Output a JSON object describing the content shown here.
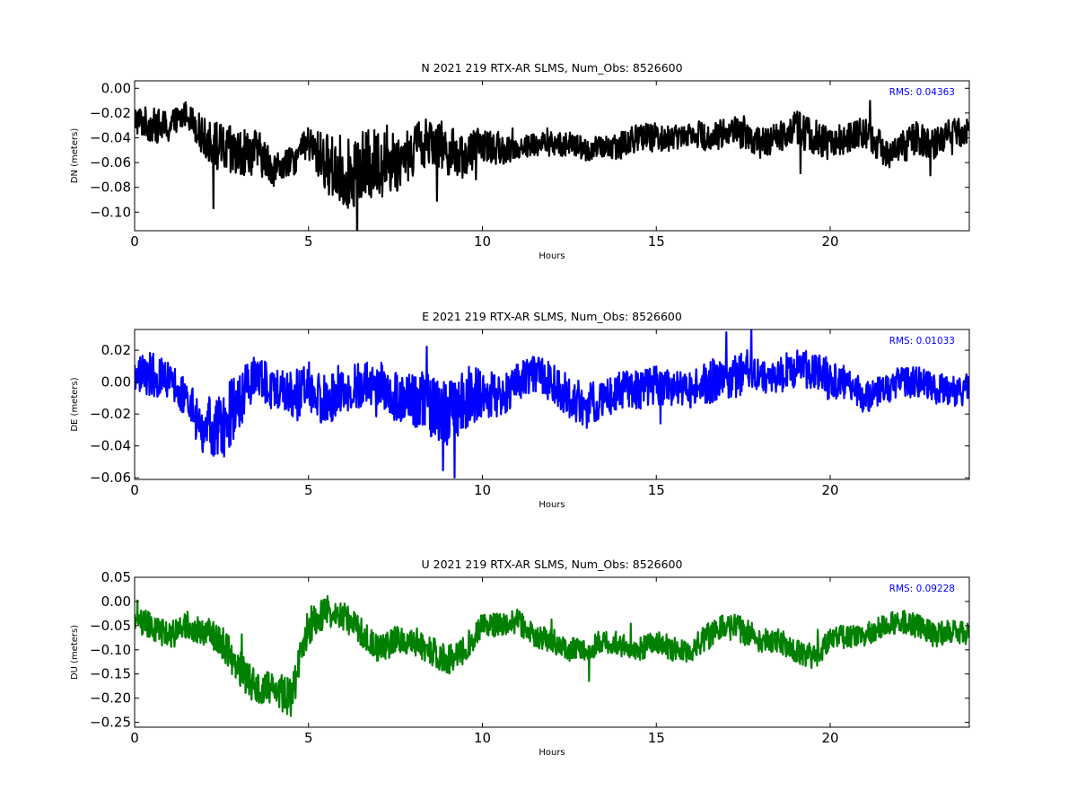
{
  "chart_data": [
    {
      "type": "line",
      "title": "N 2021 219 RTX-AR  SLMS, Num_Obs: 8526600",
      "xlabel": "Hours",
      "ylabel": "DN (meters)",
      "xlim": [
        0,
        24
      ],
      "ylim": [
        -0.115,
        0.006
      ],
      "xticks": [
        0,
        5,
        10,
        15,
        20
      ],
      "yticks": [
        0.0,
        -0.02,
        -0.04,
        -0.06,
        -0.08,
        -0.1
      ],
      "ytick_labels": [
        "0.00",
        "−0.02",
        "−0.04",
        "−0.06",
        "−0.08",
        "−0.10"
      ],
      "annotation": "RMS:  0.04363",
      "annotation_color": "#0000ff",
      "color": "#000000",
      "series": [
        {
          "x": [
            0,
            0.5,
            1.0,
            1.5,
            2.0,
            2.5,
            3.0,
            3.5,
            4.0,
            4.5,
            5.0,
            5.5,
            6.0,
            6.5,
            7.0,
            7.5,
            8.0,
            8.5,
            9.0,
            9.5,
            10.0,
            10.5,
            11.0,
            11.5,
            12.0,
            12.5,
            13.0,
            13.5,
            14.0,
            14.5,
            15.0,
            15.5,
            16.0,
            16.5,
            17.0,
            17.5,
            18.0,
            18.5,
            19.0,
            19.5,
            20.0,
            20.5,
            21.0,
            21.5,
            22.0,
            22.5,
            23.0,
            23.5,
            24.0
          ],
          "y": [
            -0.025,
            -0.03,
            -0.032,
            -0.02,
            -0.04,
            -0.05,
            -0.055,
            -0.05,
            -0.065,
            -0.06,
            -0.045,
            -0.06,
            -0.07,
            -0.065,
            -0.06,
            -0.06,
            -0.05,
            -0.04,
            -0.05,
            -0.055,
            -0.045,
            -0.05,
            -0.048,
            -0.045,
            -0.045,
            -0.045,
            -0.05,
            -0.048,
            -0.045,
            -0.04,
            -0.04,
            -0.04,
            -0.035,
            -0.04,
            -0.035,
            -0.035,
            -0.045,
            -0.04,
            -0.03,
            -0.04,
            -0.045,
            -0.04,
            -0.035,
            -0.05,
            -0.05,
            -0.04,
            -0.045,
            -0.035,
            -0.035
          ],
          "band": [
            0.012,
            0.014,
            0.014,
            0.01,
            0.016,
            0.022,
            0.022,
            0.018,
            0.014,
            0.012,
            0.014,
            0.024,
            0.028,
            0.03,
            0.028,
            0.026,
            0.022,
            0.02,
            0.02,
            0.018,
            0.014,
            0.012,
            0.01,
            0.01,
            0.01,
            0.01,
            0.01,
            0.01,
            0.012,
            0.012,
            0.012,
            0.01,
            0.01,
            0.012,
            0.012,
            0.014,
            0.012,
            0.012,
            0.014,
            0.016,
            0.014,
            0.012,
            0.012,
            0.014,
            0.014,
            0.014,
            0.012,
            0.012,
            0.012
          ]
        }
      ]
    },
    {
      "type": "line",
      "title": "E 2021 219 RTX-AR  SLMS, Num_Obs: 8526600",
      "xlabel": "Hours",
      "ylabel": "DE (meters)",
      "xlim": [
        0,
        24
      ],
      "ylim": [
        -0.061,
        0.033
      ],
      "xticks": [
        0,
        5,
        10,
        15,
        20
      ],
      "yticks": [
        0.02,
        0.0,
        -0.02,
        -0.04,
        -0.06
      ],
      "ytick_labels": [
        "0.02",
        "0.00",
        "−0.02",
        "−0.04",
        "−0.06"
      ],
      "annotation": "RMS:  0.01033",
      "annotation_color": "#0000ff",
      "color": "#0000ff",
      "series": [
        {
          "x": [
            0,
            0.5,
            1.0,
            1.5,
            2.0,
            2.5,
            3.0,
            3.5,
            4.0,
            4.5,
            5.0,
            5.5,
            6.0,
            6.5,
            7.0,
            7.5,
            8.0,
            8.5,
            9.0,
            9.5,
            10.0,
            10.5,
            11.0,
            11.5,
            12.0,
            12.5,
            13.0,
            13.5,
            14.0,
            14.5,
            15.0,
            15.5,
            16.0,
            16.5,
            17.0,
            17.5,
            18.0,
            18.5,
            19.0,
            19.5,
            20.0,
            20.5,
            21.0,
            21.5,
            22.0,
            22.5,
            23.0,
            23.5,
            24.0
          ],
          "y": [
            0.005,
            0.005,
            0.002,
            -0.01,
            -0.03,
            -0.03,
            -0.01,
            0.005,
            -0.005,
            -0.01,
            -0.005,
            -0.012,
            -0.005,
            -0.002,
            0.0,
            -0.01,
            -0.01,
            -0.015,
            -0.02,
            -0.01,
            -0.005,
            -0.01,
            0.0,
            0.005,
            0.0,
            -0.01,
            -0.015,
            -0.01,
            -0.005,
            -0.005,
            -0.002,
            -0.005,
            -0.005,
            0.0,
            0.002,
            0.005,
            0.005,
            0.005,
            0.008,
            0.008,
            0.0,
            0.0,
            -0.01,
            -0.005,
            0.0,
            0.0,
            -0.005,
            -0.005,
            -0.005
          ],
          "band": [
            0.012,
            0.014,
            0.012,
            0.012,
            0.02,
            0.022,
            0.02,
            0.012,
            0.014,
            0.016,
            0.018,
            0.016,
            0.014,
            0.014,
            0.014,
            0.016,
            0.018,
            0.02,
            0.02,
            0.02,
            0.016,
            0.014,
            0.012,
            0.012,
            0.012,
            0.014,
            0.014,
            0.012,
            0.012,
            0.012,
            0.012,
            0.012,
            0.012,
            0.014,
            0.014,
            0.014,
            0.012,
            0.012,
            0.012,
            0.012,
            0.012,
            0.01,
            0.01,
            0.01,
            0.01,
            0.01,
            0.01,
            0.01,
            0.01
          ]
        }
      ]
    },
    {
      "type": "line",
      "title": "U 2021 219 RTX-AR  SLMS, Num_Obs: 8526600",
      "xlabel": "Hours",
      "ylabel": "DU (meters)",
      "xlim": [
        0,
        24
      ],
      "ylim": [
        -0.26,
        0.05
      ],
      "xticks": [
        0,
        5,
        10,
        15,
        20
      ],
      "yticks": [
        0.05,
        0.0,
        -0.05,
        -0.1,
        -0.15,
        -0.2,
        -0.25
      ],
      "ytick_labels": [
        "0.05",
        "0.00",
        "−0.05",
        "−0.10",
        "−0.15",
        "−0.20",
        "−0.25"
      ],
      "annotation": "RMS:  0.09228",
      "annotation_color": "#0000ff",
      "color": "#008000",
      "series": [
        {
          "x": [
            0,
            0.5,
            1.0,
            1.5,
            2.0,
            2.5,
            3.0,
            3.5,
            4.0,
            4.5,
            5.0,
            5.5,
            6.0,
            6.5,
            7.0,
            7.5,
            8.0,
            8.5,
            9.0,
            9.5,
            10.0,
            10.5,
            11.0,
            11.5,
            12.0,
            12.5,
            13.0,
            13.5,
            14.0,
            14.5,
            15.0,
            15.5,
            16.0,
            16.5,
            17.0,
            17.5,
            18.0,
            18.5,
            19.0,
            19.5,
            20.0,
            20.5,
            21.0,
            21.5,
            22.0,
            22.5,
            23.0,
            23.5,
            24.0
          ],
          "y": [
            -0.04,
            -0.05,
            -0.07,
            -0.05,
            -0.06,
            -0.08,
            -0.14,
            -0.18,
            -0.18,
            -0.2,
            -0.05,
            -0.02,
            -0.03,
            -0.06,
            -0.1,
            -0.08,
            -0.08,
            -0.1,
            -0.12,
            -0.1,
            -0.05,
            -0.05,
            -0.04,
            -0.07,
            -0.08,
            -0.1,
            -0.1,
            -0.08,
            -0.09,
            -0.1,
            -0.08,
            -0.1,
            -0.1,
            -0.07,
            -0.05,
            -0.06,
            -0.08,
            -0.08,
            -0.1,
            -0.12,
            -0.08,
            -0.07,
            -0.07,
            -0.05,
            -0.04,
            -0.05,
            -0.07,
            -0.06,
            -0.07
          ],
          "band": [
            0.025,
            0.03,
            0.03,
            0.03,
            0.03,
            0.035,
            0.04,
            0.035,
            0.035,
            0.04,
            0.04,
            0.035,
            0.03,
            0.03,
            0.03,
            0.03,
            0.03,
            0.03,
            0.035,
            0.03,
            0.025,
            0.025,
            0.025,
            0.025,
            0.025,
            0.025,
            0.025,
            0.025,
            0.025,
            0.025,
            0.025,
            0.025,
            0.025,
            0.03,
            0.03,
            0.03,
            0.025,
            0.025,
            0.025,
            0.025,
            0.025,
            0.025,
            0.025,
            0.025,
            0.025,
            0.025,
            0.025,
            0.025,
            0.025
          ]
        }
      ]
    }
  ]
}
